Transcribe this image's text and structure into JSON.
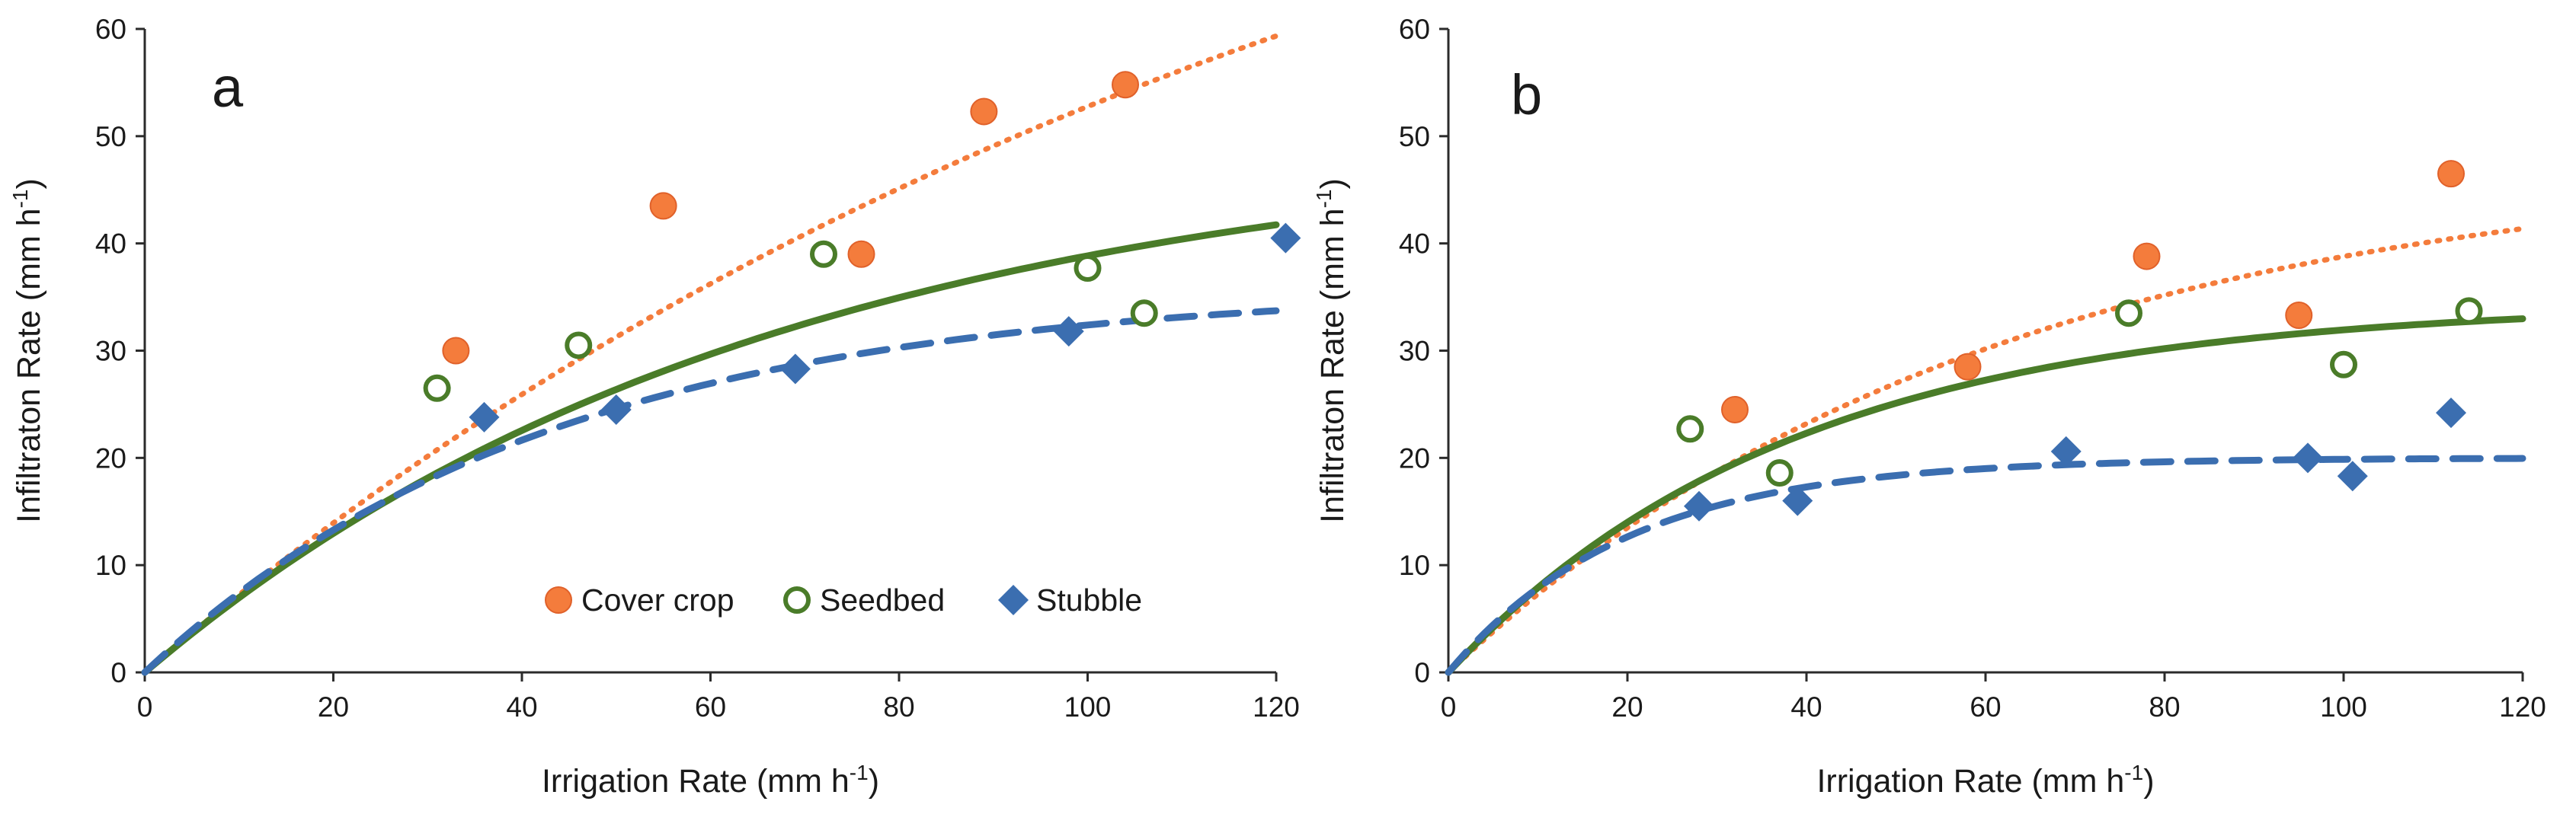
{
  "chart_data": [
    {
      "type": "scatter",
      "panel_label": "a",
      "xlabel": "Irrigation Rate (mm h",
      "ylabel": "Infiltraton Rate (mm h",
      "unit_superscript": "-1",
      "unit_close": ")",
      "xlim": [
        0,
        120
      ],
      "ylim": [
        0,
        60
      ],
      "xticks": [
        0,
        20,
        40,
        60,
        80,
        100,
        120
      ],
      "yticks": [
        0,
        10,
        20,
        30,
        40,
        50,
        60
      ],
      "legend": true,
      "series": [
        {
          "name": "Cover crop",
          "marker": "filled-circle",
          "color": "#f47c3c",
          "x": [
            33,
            55,
            76,
            89,
            104
          ],
          "y": [
            30,
            43.5,
            39,
            52.3,
            54.8
          ],
          "fit": {
            "style": "dotted",
            "a": 100,
            "k": 0.0075,
            "xmax": 120
          }
        },
        {
          "name": "Seedbed",
          "marker": "open-circle",
          "color": "#4a7c29",
          "x": [
            31,
            46,
            72,
            100,
            106
          ],
          "y": [
            26.5,
            30.5,
            39,
            37.7,
            33.5
          ],
          "fit": {
            "style": "solid",
            "a": 50,
            "k": 0.015,
            "xmax": 120
          }
        },
        {
          "name": "Stubble",
          "marker": "diamond",
          "color": "#3b6eb0",
          "x": [
            36,
            50,
            69,
            98,
            121
          ],
          "y": [
            23.8,
            24.5,
            28.3,
            31.8,
            40.5
          ],
          "fit": {
            "style": "dashed",
            "a": 36,
            "k": 0.023,
            "xmax": 120
          }
        }
      ]
    },
    {
      "type": "scatter",
      "panel_label": "b",
      "xlabel": "Irrigation Rate (mm h",
      "ylabel": "Infiltraton Rate (mm h",
      "unit_superscript": "-1",
      "unit_close": ")",
      "xlim": [
        0,
        120
      ],
      "ylim": [
        0,
        60
      ],
      "xticks": [
        0,
        20,
        40,
        60,
        80,
        100,
        120
      ],
      "yticks": [
        0,
        10,
        20,
        30,
        40,
        50,
        60
      ],
      "legend": false,
      "series": [
        {
          "name": "Cover crop",
          "marker": "filled-circle",
          "color": "#f47c3c",
          "x": [
            32,
            58,
            78,
            95,
            112
          ],
          "y": [
            24.5,
            28.5,
            38.8,
            33.3,
            46.5
          ],
          "fit": {
            "style": "dotted",
            "a": 48,
            "k": 0.0165,
            "xmax": 120
          }
        },
        {
          "name": "Seedbed",
          "marker": "open-circle",
          "color": "#4a7c29",
          "x": [
            27,
            37,
            76,
            100,
            114
          ],
          "y": [
            22.7,
            18.6,
            33.5,
            28.7,
            33.7
          ],
          "fit": {
            "style": "solid",
            "a": 34.5,
            "k": 0.026,
            "xmax": 120
          }
        },
        {
          "name": "Stubble",
          "marker": "diamond",
          "color": "#3b6eb0",
          "x": [
            28,
            39,
            69,
            96,
            101,
            112
          ],
          "y": [
            15.5,
            16,
            20.6,
            20,
            18.3,
            24.2
          ],
          "fit": {
            "style": "dashed",
            "a": 20,
            "k": 0.05,
            "xmax": 120
          }
        }
      ]
    }
  ]
}
